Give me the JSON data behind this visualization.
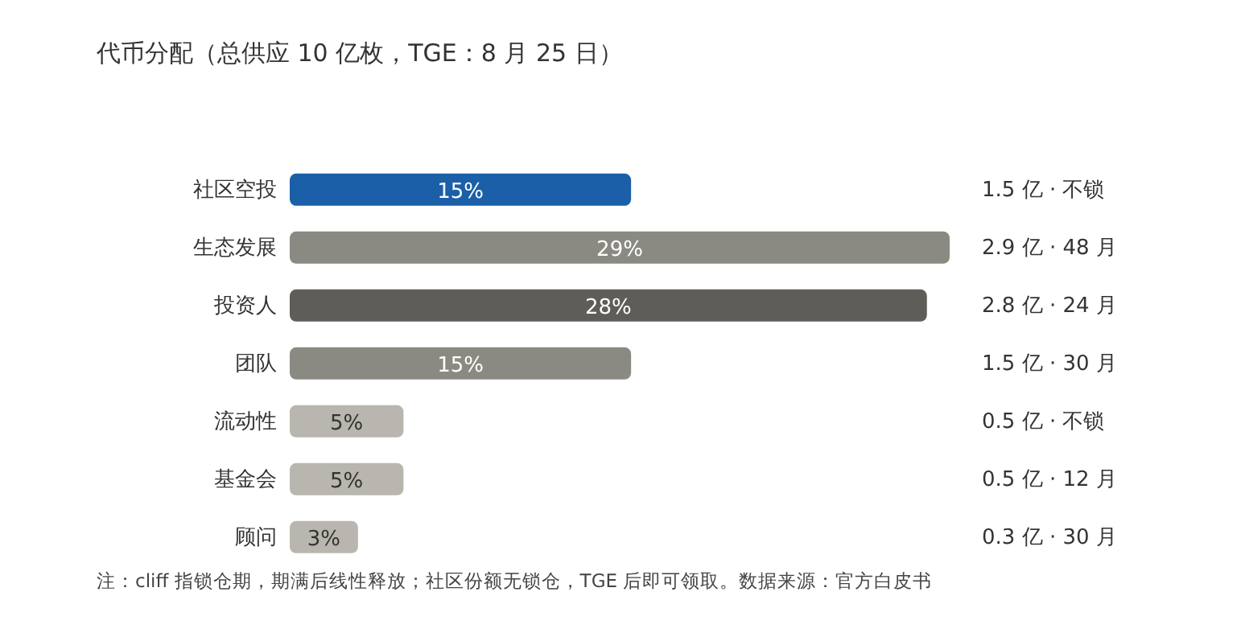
{
  "chart_data": {
    "type": "bar",
    "orientation": "horizontal",
    "title": "代币分配（总供应 10 亿枚，TGE：8 月 25 日）",
    "categories": [
      "社区空投",
      "生态发展",
      "投资人",
      "团队",
      "流动性",
      "基金会",
      "顾问"
    ],
    "values": [
      15,
      29,
      28,
      15,
      5,
      5,
      3
    ],
    "colors": [
      "#1a5fa8",
      "#8a8a82",
      "#5e5d58",
      "#8a8a82",
      "#b8b6ae",
      "#b8b6ae",
      "#b8b6ae"
    ],
    "value_labels": [
      "15%",
      "29%",
      "28%",
      "15%",
      "5%",
      "5%",
      "3%"
    ],
    "annotations": [
      "1.5 亿 · 不锁",
      "2.9 亿 · 48 月",
      "2.8 亿 · 24 月",
      "1.5 亿 · 30 月",
      "0.5 亿 · 不锁",
      "0.5 亿 · 12 月",
      "0.3 亿 · 30 月",
      "注：cliff 指锁仓期，期满后线性释放；社区份额无锁仓，TGE 后即可领取。数据来源：官方白皮书"
    ]
  }
}
